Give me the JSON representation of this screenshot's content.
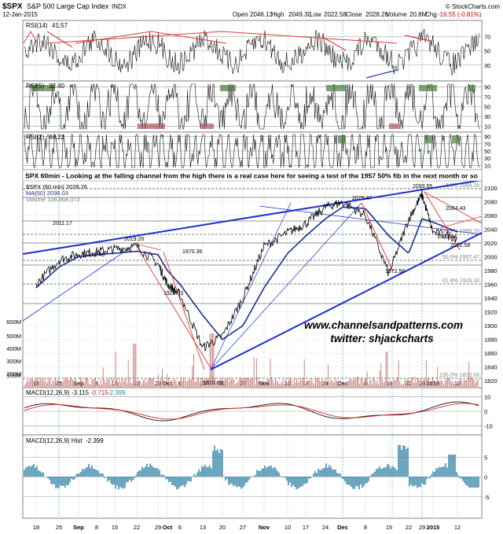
{
  "header": {
    "symbol": "$SPX",
    "name": "S&P 500 Large Cap Index",
    "exchange": "INDX",
    "date": "12-Jan-2015",
    "brand": "© StockCharts.com",
    "ohlc": {
      "open_label": "Open",
      "open": "2046.13",
      "high_label": "High",
      "high": "2049.30",
      "low_label": "Low",
      "low": "2022.58",
      "close_label": "Close",
      "close": "2028.26",
      "volume_label": "Volume",
      "volume": "20.8M",
      "chg_label": "Chg",
      "chg": "-16.55 (-0.81%)"
    }
  },
  "panels": {
    "rsi14": {
      "label": "RSI(14)",
      "value": "41.57",
      "levels": [
        "70",
        "50",
        "30"
      ]
    },
    "rsi5": {
      "label": "RSI(5)",
      "value": "32.40",
      "levels": [
        "90",
        "70",
        "50",
        "30",
        "10"
      ]
    },
    "rsi2": {
      "label": "RSI(2)",
      "value": "46.22",
      "levels": [
        "90",
        "70",
        "50",
        "30",
        "10"
      ]
    },
    "macd": {
      "label": "MACD(12,26,9)",
      "macd": "-3.115",
      "signal": "-0.715",
      "hist": "-2.399",
      "levels": [
        "10",
        "0",
        "-10"
      ]
    },
    "hist": {
      "label": "MACD(12,26,9) Hist",
      "value": "-2.399",
      "levels": [
        "5",
        "0",
        "-5"
      ]
    }
  },
  "annotation": "SPX 60min - Looking at the falling channel from the high there is a real case here for seeing a test of the 1957 50% fib in the next month or so",
  "main_legend": {
    "price": "$SPX (60 min) 2028.26",
    "ma": "MA(50) 2036.03",
    "volume": "Volume 106,868,072"
  },
  "watermark": {
    "line1": "www.channelsandpatterns.com",
    "line2": "twitter: shjackcharts"
  },
  "price_axis": [
    "2100",
    "2080",
    "2060",
    "2040",
    "2020",
    "2000",
    "1980",
    "1960",
    "1940",
    "1920",
    "1900",
    "1880",
    "1860",
    "1840",
    "1820"
  ],
  "volume_axis": [
    "600M",
    "500M",
    "400M",
    "300M",
    "200M",
    "100M"
  ],
  "x_axis": [
    "18",
    "25",
    "Sep",
    "8",
    "15",
    "22",
    "29",
    "Oct",
    "6",
    "13",
    "20",
    "27",
    "Nov",
    "10",
    "17",
    "24",
    "Dec",
    "8",
    "15",
    "22",
    "29",
    "2015",
    "12"
  ],
  "fib_labels": [
    "0.0% 2064.28",
    "38.2% 1989.78",
    "50.0% 1957.47",
    "61.8% 1926.18",
    "100.0% 1820.66"
  ],
  "price_labels": [
    "2011.17",
    "2019.26",
    "1979.48",
    "1970.36",
    "1926.03",
    "1820.66",
    "2079.47",
    "2093.55",
    "2064.43",
    "2022.58",
    "1992.44",
    "1972.56"
  ],
  "colors": {
    "price": "#000000",
    "ma": "#1a2e8c",
    "channel": "#1f2fd0",
    "red_line": "#e23a3a",
    "ob_fill": "#4a7a3a",
    "os_fill": "#b0565a",
    "hist": "#2d7fa5",
    "volume": "#c87878"
  },
  "chart_data": {
    "type": "line",
    "title": "$SPX (60 min)",
    "x": [
      "18",
      "25",
      "Sep",
      "8",
      "15",
      "22",
      "29",
      "Oct",
      "6",
      "13",
      "20",
      "27",
      "Nov",
      "10",
      "17",
      "24",
      "Dec",
      "8",
      "15",
      "22",
      "29",
      "2015",
      "12"
    ],
    "series": [
      {
        "name": "$SPX (60 min)",
        "values": [
          1960,
          1995,
          2004,
          2007,
          2011,
          2015,
          1990,
          1960,
          1945,
          1868,
          1885,
          1940,
          2015,
          2035,
          2048,
          2072,
          2079,
          2060,
          1975,
          2055,
          2090,
          2035,
          2028
        ]
      },
      {
        "name": "MA(50)",
        "values": [
          1955,
          1985,
          2000,
          2003,
          2005,
          2008,
          2003,
          1980,
          1960,
          1915,
          1880,
          1900,
          1955,
          2005,
          2030,
          2055,
          2072,
          2070,
          2030,
          2005,
          2055,
          2050,
          2036
        ]
      }
    ],
    "ylim": [
      1810,
      2110
    ]
  }
}
